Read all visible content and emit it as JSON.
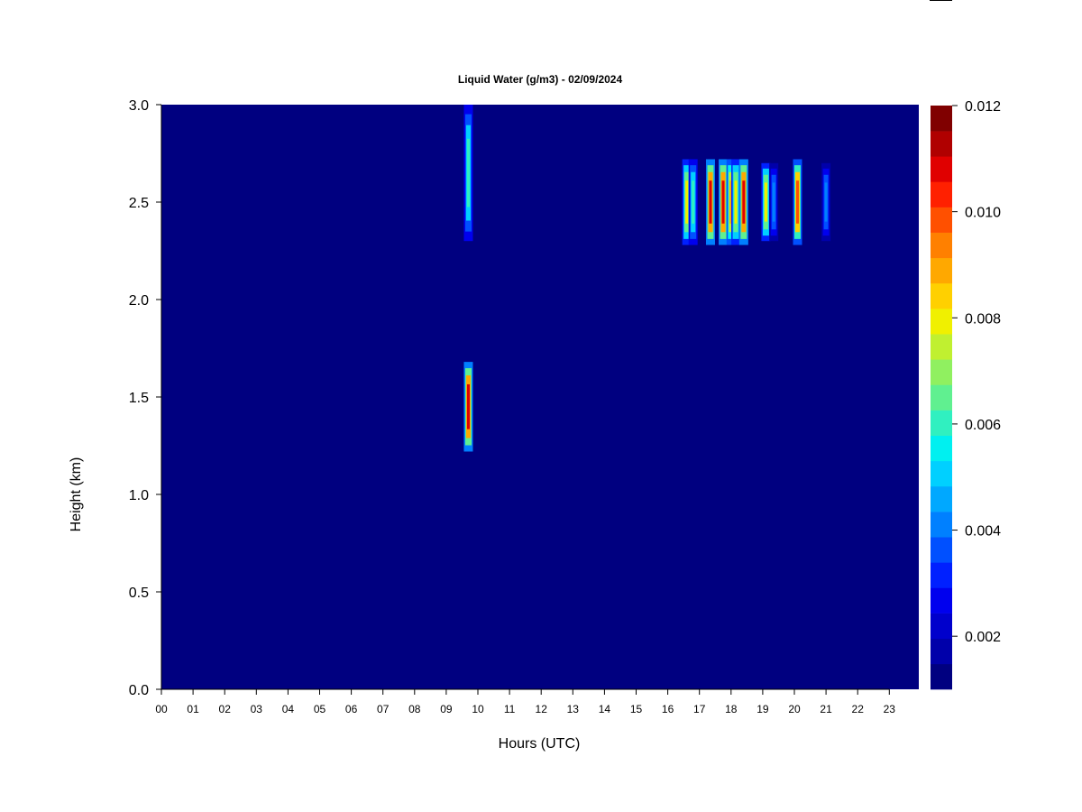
{
  "chart_data": {
    "type": "heatmap",
    "title": "Liquid Water (g/m3) - 02/09/2024",
    "xlabel": "Hours (UTC)",
    "ylabel": "Height (km)",
    "xlim": [
      0,
      24
    ],
    "ylim": [
      0.0,
      3.0
    ],
    "x_tick_labels": [
      "00",
      "01",
      "02",
      "03",
      "04",
      "05",
      "06",
      "07",
      "08",
      "09",
      "10",
      "11",
      "12",
      "13",
      "14",
      "15",
      "16",
      "17",
      "18",
      "19",
      "20",
      "21",
      "22",
      "23"
    ],
    "y_tick_labels": [
      "0.0",
      "0.5",
      "1.0",
      "1.5",
      "2.0",
      "2.5",
      "3.0"
    ],
    "background_value": 0.0,
    "colorbar": {
      "min": 0.001,
      "max": 0.012,
      "tick_labels": [
        "0.002",
        "0.004",
        "0.006",
        "0.008",
        "0.010",
        "0.012"
      ],
      "colors": [
        "#000080",
        "#0000aa",
        "#0000cc",
        "#0000ee",
        "#0020ff",
        "#0050ff",
        "#0080ff",
        "#00a8ff",
        "#00d0ff",
        "#00f0f0",
        "#30f0c0",
        "#60f090",
        "#90f060",
        "#c0f030",
        "#f0f000",
        "#ffd000",
        "#ffa800",
        "#ff8000",
        "#ff5000",
        "#ff2000",
        "#e00000",
        "#b00000",
        "#800000"
      ]
    },
    "features": [
      {
        "hour": 9.7,
        "height_range": [
          2.3,
          3.0
        ],
        "peak": 0.006
      },
      {
        "hour": 9.7,
        "height_range": [
          1.22,
          1.68
        ],
        "peak": 0.011
      },
      {
        "hour": 16.6,
        "height_range": [
          2.28,
          2.72
        ],
        "peak": 0.008
      },
      {
        "hour": 16.8,
        "height_range": [
          2.28,
          2.72
        ],
        "peak": 0.006
      },
      {
        "hour": 17.35,
        "height_range": [
          2.28,
          2.72
        ],
        "peak": 0.011
      },
      {
        "hour": 17.75,
        "height_range": [
          2.28,
          2.72
        ],
        "peak": 0.011
      },
      {
        "hour": 18.0,
        "height_range": [
          2.28,
          2.72
        ],
        "peak": 0.009
      },
      {
        "hour": 18.15,
        "height_range": [
          2.28,
          2.72
        ],
        "peak": 0.008
      },
      {
        "hour": 18.4,
        "height_range": [
          2.28,
          2.72
        ],
        "peak": 0.011
      },
      {
        "hour": 19.1,
        "height_range": [
          2.3,
          2.7
        ],
        "peak": 0.008
      },
      {
        "hour": 19.35,
        "height_range": [
          2.3,
          2.7
        ],
        "peak": 0.004
      },
      {
        "hour": 20.1,
        "height_range": [
          2.28,
          2.72
        ],
        "peak": 0.01
      },
      {
        "hour": 21.0,
        "height_range": [
          2.3,
          2.7
        ],
        "peak": 0.004
      }
    ]
  }
}
